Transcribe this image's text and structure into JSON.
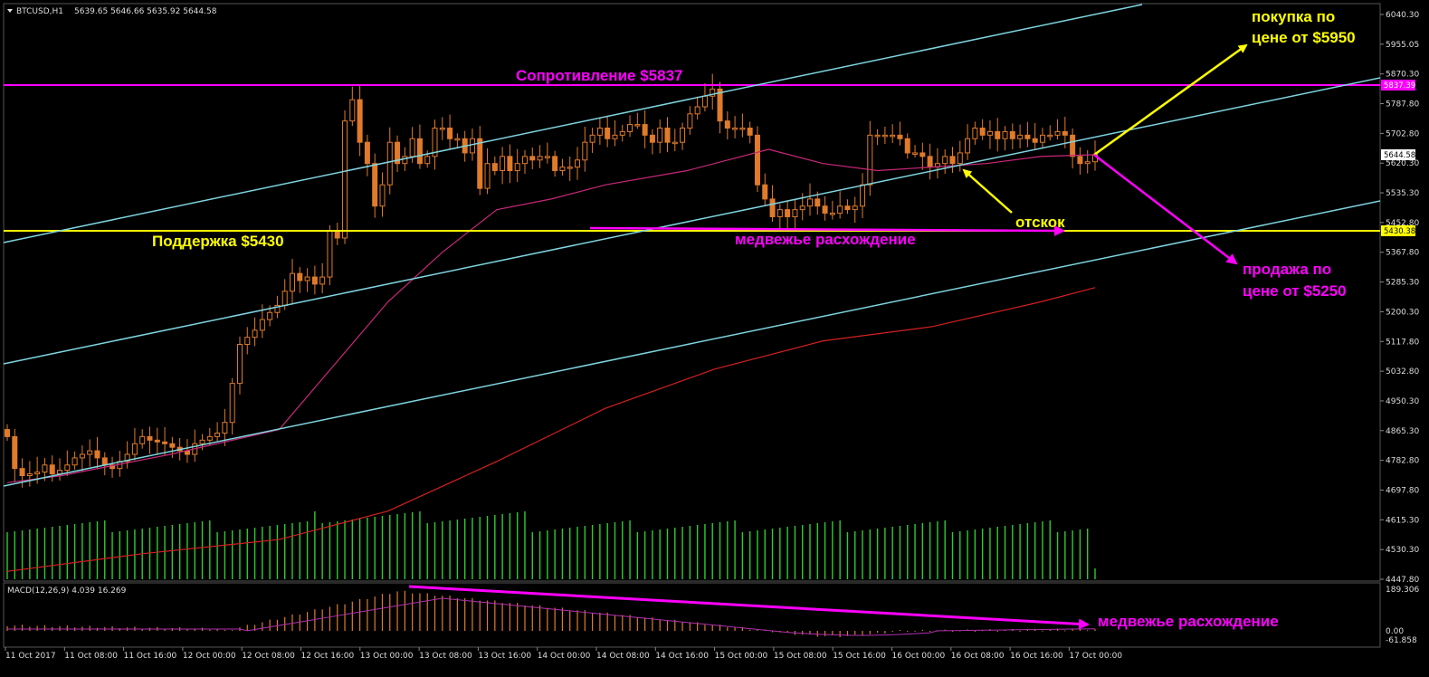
{
  "header": {
    "symbol": "BTCUSD,H1",
    "ohlc": "5639.65 5646.66 5635.92 5644.58",
    "macd_label": "MACD(12,26,9) 4.039 16.269"
  },
  "price_axis": {
    "ticks": [
      "6040.30",
      "5955.05",
      "5870.30",
      "5787.80",
      "5702.80",
      "5620.30",
      "5535.30",
      "5452.80",
      "5367.80",
      "5285.30",
      "5200.30",
      "5117.80",
      "5032.80",
      "4950.30",
      "4865.30",
      "4782.80",
      "4697.80",
      "4615.30",
      "4530.30",
      "4447.80"
    ],
    "tag_resistance": "5837.39",
    "tag_current": "5644.58",
    "tag_support": "5430.38"
  },
  "macd_axis": {
    "ticks": [
      "189.306",
      "0.00",
      "-61.858"
    ]
  },
  "time_axis": {
    "ticks": [
      "11 Oct 2017",
      "11 Oct 08:00",
      "11 Oct 16:00",
      "12 Oct 00:00",
      "12 Oct 08:00",
      "12 Oct 16:00",
      "13 Oct 00:00",
      "13 Oct 08:00",
      "13 Oct 16:00",
      "14 Oct 00:00",
      "14 Oct 08:00",
      "14 Oct 16:00",
      "15 Oct 00:00",
      "15 Oct 08:00",
      "15 Oct 16:00",
      "16 Oct 00:00",
      "16 Oct 08:00",
      "16 Oct 16:00",
      "17 Oct 00:00"
    ]
  },
  "annotations": {
    "resistance": "Сопротивление $5837",
    "support": "Поддержка $5430",
    "bounce": "отскок",
    "divergence_price": "медвежье расхождение",
    "divergence_macd": "медвежье расхождение",
    "buy_line1": "покупка по",
    "buy_line2": "цене от $5950",
    "sell_line1": "продажа по",
    "sell_line2": "цене от $5250"
  },
  "colors": {
    "candle": "#e07b2a",
    "channel": "#7fd4e0",
    "resistance": "#ff00ff",
    "support": "#ffff00",
    "ma_fast": "#c8287a",
    "ma_slow": "#d42020",
    "volume": "#2ecc2e",
    "macd_hist": "#e07b2a",
    "macd_signal": "#b030b0",
    "divergence": "#ff00ff",
    "grid": "#1a1a1a"
  },
  "chart_data": {
    "type": "candlestick",
    "symbol": "BTCUSD",
    "timeframe": "H1",
    "ylim": [
      4447.8,
      6040.3
    ],
    "support": 5430.38,
    "resistance": 5837.39,
    "last_price": 5644.58,
    "target_buy": 5950,
    "target_sell": 5250,
    "closes": [
      4850,
      4760,
      4740,
      4745,
      4750,
      4770,
      4745,
      4755,
      4770,
      4790,
      4800,
      4810,
      4790,
      4770,
      4760,
      4780,
      4800,
      4830,
      4850,
      4840,
      4835,
      4830,
      4820,
      4810,
      4800,
      4830,
      4840,
      4850,
      4860,
      4890,
      5000,
      5110,
      5130,
      5150,
      5180,
      5200,
      5220,
      5260,
      5310,
      5290,
      5300,
      5280,
      5300,
      5430,
      5410,
      5740,
      5800,
      5680,
      5620,
      5500,
      5560,
      5680,
      5620,
      5640,
      5690,
      5620,
      5640,
      5720,
      5720,
      5690,
      5690,
      5650,
      5690,
      5550,
      5620,
      5600,
      5640,
      5600,
      5620,
      5640,
      5630,
      5640,
      5640,
      5600,
      5610,
      5610,
      5630,
      5680,
      5700,
      5720,
      5690,
      5700,
      5710,
      5730,
      5730,
      5700,
      5680,
      5720,
      5680,
      5680,
      5720,
      5760,
      5780,
      5810,
      5830,
      5740,
      5720,
      5720,
      5720,
      5700,
      5560,
      5520,
      5470,
      5490,
      5470,
      5490,
      5500,
      5520,
      5500,
      5480,
      5480,
      5500,
      5490,
      5500,
      5560,
      5700,
      5700,
      5700,
      5700,
      5690,
      5650,
      5650,
      5640,
      5610,
      5620,
      5640,
      5620,
      5650,
      5690,
      5720,
      5700,
      5710,
      5690,
      5710,
      5690,
      5700,
      5690,
      5680,
      5700,
      5700,
      5710,
      5700,
      5640,
      5620,
      5625,
      5645
    ],
    "ma_fast_points": [
      [
        0,
        4720
      ],
      [
        40,
        4740
      ],
      [
        80,
        4770
      ],
      [
        120,
        4800
      ],
      [
        200,
        4870
      ],
      [
        240,
        5050
      ],
      [
        280,
        5230
      ],
      [
        320,
        5370
      ],
      [
        360,
        5490
      ],
      [
        400,
        5520
      ],
      [
        440,
        5560
      ],
      [
        500,
        5600
      ],
      [
        560,
        5660
      ],
      [
        600,
        5620
      ],
      [
        640,
        5600
      ],
      [
        680,
        5610
      ],
      [
        720,
        5620
      ],
      [
        760,
        5640
      ],
      [
        800,
        5645
      ]
    ],
    "ma_slow_points": [
      [
        0,
        4470
      ],
      [
        100,
        4520
      ],
      [
        200,
        4560
      ],
      [
        280,
        4640
      ],
      [
        360,
        4780
      ],
      [
        440,
        4930
      ],
      [
        520,
        5040
      ],
      [
        600,
        5120
      ],
      [
        680,
        5160
      ],
      [
        760,
        5230
      ],
      [
        800,
        5270
      ]
    ],
    "volume_relative": "green histogram, roughly uniform with peaks around 13 Oct",
    "macd": {
      "ylim": [
        -61.858,
        189.306
      ],
      "label": "MACD(12,26,9)",
      "macd": 4.039,
      "signal": 16.269,
      "peak_area": "13 Oct"
    }
  }
}
